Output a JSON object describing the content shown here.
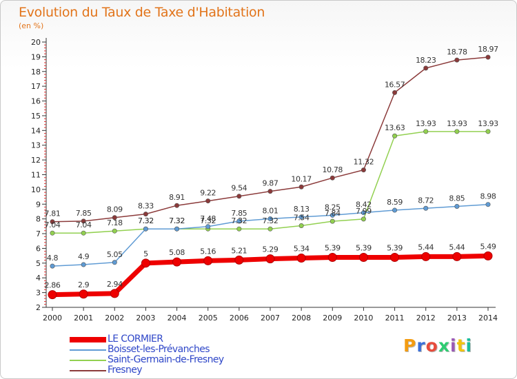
{
  "chart_data": {
    "type": "line",
    "title": "Evolution du Taux de Taxe d'Habitation",
    "subtitle": "(en %)",
    "xlabel": "",
    "ylabel": "",
    "x": [
      2000,
      2001,
      2002,
      2003,
      2004,
      2005,
      2006,
      2007,
      2008,
      2009,
      2010,
      2011,
      2012,
      2013,
      2014
    ],
    "ylim": [
      2,
      20
    ],
    "yticks": [
      2,
      3,
      4,
      5,
      6,
      7,
      8,
      9,
      10,
      11,
      12,
      13,
      14,
      15,
      16,
      17,
      18,
      19,
      20
    ],
    "grid": false,
    "legend": "bottom-left",
    "series": [
      {
        "name": "LE CORMIER",
        "color": "#ee0000",
        "values": [
          2.86,
          2.9,
          2.94,
          5,
          5.08,
          5.16,
          5.21,
          5.29,
          5.34,
          5.39,
          5.39,
          5.39,
          5.44,
          5.44,
          5.49
        ],
        "labels": [
          "2.86",
          "2.9",
          "2.94",
          "5",
          "5.08",
          "5.16",
          "5.21",
          "5.29",
          "5.34",
          "5.39",
          "5.39",
          "5.39",
          "5.44",
          "5.44",
          "5.49"
        ]
      },
      {
        "name": "Boisset-les-Prévanches",
        "color": "#5f9bd4",
        "values": [
          4.8,
          4.9,
          5.05,
          7.32,
          7.32,
          7.48,
          7.85,
          8.01,
          8.13,
          8.25,
          8.42,
          8.59,
          8.72,
          8.85,
          8.98
        ],
        "labels": [
          "4.8",
          "4.9",
          "5.05",
          "7.32",
          "7.32",
          "7.48",
          "7.85",
          "8.01",
          "8.13",
          "8.25",
          "8.42",
          "8.59",
          "8.72",
          "8.85",
          "8.98"
        ]
      },
      {
        "name": "Saint-Germain-de-Fresney",
        "color": "#92d050",
        "values": [
          7.04,
          7.04,
          7.18,
          7.32,
          7.32,
          7.32,
          7.32,
          7.32,
          7.54,
          7.84,
          7.99,
          13.63,
          13.93,
          13.93,
          13.93
        ],
        "labels": [
          "7.04",
          "7.04",
          "7.18",
          "7.32",
          "7.32",
          "7.32",
          "7.32",
          "7.32",
          "7.54",
          "7.84",
          "7.99",
          "13.63",
          "13.93",
          "13.93",
          "13.93"
        ]
      },
      {
        "name": "Fresney",
        "color": "#8b3a3a",
        "values": [
          7.81,
          7.85,
          8.09,
          8.33,
          8.91,
          9.22,
          9.54,
          9.87,
          10.17,
          10.78,
          11.32,
          16.57,
          18.23,
          18.78,
          18.97
        ],
        "labels": [
          "7.81",
          "7.85",
          "8.09",
          "8.33",
          "8.91",
          "9.22",
          "9.54",
          "9.87",
          "10.17",
          "10.78",
          "11.32",
          "16.57",
          "18.23",
          "18.78",
          "18.97"
        ]
      }
    ]
  },
  "logo": {
    "text": "Proxiti",
    "colors": [
      "#f39c12",
      "#3b6fd8",
      "#e74c3c",
      "#2ecc71",
      "#9b59b6",
      "#f1c40f",
      "#1abc9c"
    ]
  }
}
